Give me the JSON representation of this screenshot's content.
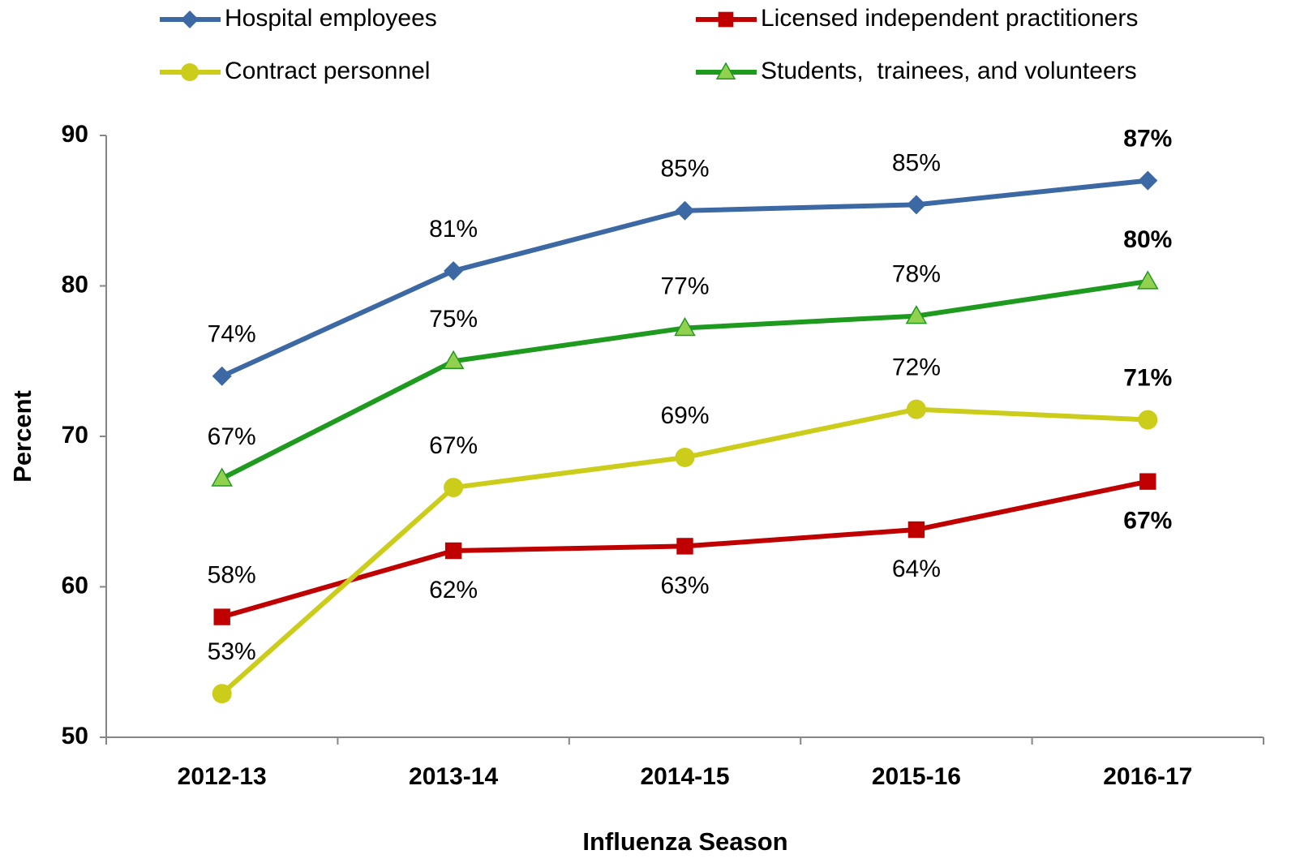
{
  "chart_data": {
    "type": "line",
    "x_label": "Influenza Season",
    "y_label": "Percent",
    "categories": [
      "2012-13",
      "2013-14",
      "2014-15",
      "2015-16",
      "2016-17"
    ],
    "series": [
      {
        "name": "Hospital employees",
        "color": "#3c68a4",
        "marker": "diamond",
        "values": [
          74.0,
          81.0,
          85.0,
          85.4,
          87.0
        ],
        "value_labels": [
          "74%",
          "81%",
          "85%",
          "85%",
          "87%"
        ]
      },
      {
        "name": "Licensed independent practitioners",
        "color": "#c00000",
        "marker": "square",
        "values": [
          58.0,
          62.4,
          62.7,
          63.8,
          67.0
        ],
        "value_labels": [
          "58%",
          "62%",
          "63%",
          "64%",
          "67%"
        ]
      },
      {
        "name": "Contract personnel",
        "color": "#cccc1a",
        "marker": "circle",
        "values": [
          52.9,
          66.6,
          68.6,
          71.8,
          71.1
        ],
        "value_labels": [
          "53%",
          "67%",
          "69%",
          "72%",
          "71%"
        ]
      },
      {
        "name": "Students,  trainees, and volunteers",
        "color": "#1e9a1e",
        "marker_color": "#92d050",
        "marker": "triangle",
        "values": [
          67.2,
          75.0,
          77.2,
          78.0,
          80.3
        ],
        "value_labels": [
          "67%",
          "75%",
          "77%",
          "78%",
          "80%"
        ]
      }
    ],
    "ylim": [
      50,
      90
    ],
    "yticks": [
      50,
      60,
      70,
      80,
      90
    ],
    "grid": false
  }
}
